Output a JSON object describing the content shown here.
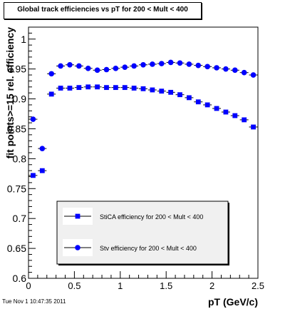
{
  "title": "Global track efficiencies vs pT for 200 < Mult < 400",
  "footer_timestamp": "Tue Nov  1 10:47:35 2011",
  "chart_data": {
    "type": "scatter",
    "title": "Global track efficiencies vs pT for 200 < Mult < 400",
    "xlabel": "pT (GeV/c)",
    "ylabel": "fit points>=15 rel. efficiency",
    "xlim": [
      0,
      2.5
    ],
    "ylim": [
      0.6,
      1.02
    ],
    "x_ticks": [
      "0",
      "0.5",
      "1",
      "1.5",
      "2",
      "2.5"
    ],
    "y_ticks": [
      "0.6",
      "0.65",
      "0.7",
      "0.75",
      "0.8",
      "0.85",
      "0.9",
      "0.95",
      "1"
    ],
    "grid": false,
    "legend_position": "bottom-center",
    "x": [
      0.05,
      0.15,
      0.25,
      0.35,
      0.45,
      0.55,
      0.65,
      0.75,
      0.85,
      0.95,
      1.05,
      1.15,
      1.25,
      1.35,
      1.45,
      1.55,
      1.65,
      1.75,
      1.85,
      1.95,
      2.05,
      2.15,
      2.25,
      2.35,
      2.45
    ],
    "series": [
      {
        "name": "StiCA efficiency  for 200 < Mult < 400",
        "marker": "square",
        "color": "#0000ff",
        "values": [
          0.772,
          0.78,
          0.908,
          0.918,
          0.918,
          0.919,
          0.92,
          0.92,
          0.919,
          0.919,
          0.919,
          0.918,
          0.917,
          0.915,
          0.913,
          0.911,
          0.907,
          0.902,
          0.895,
          0.89,
          0.884,
          0.878,
          0.872,
          0.865,
          0.853
        ]
      },
      {
        "name": "Stv efficiency  for 200 < Mult < 400",
        "marker": "circle",
        "color": "#0000ff",
        "values": [
          0.866,
          0.817,
          0.942,
          0.955,
          0.957,
          0.955,
          0.951,
          0.948,
          0.949,
          0.951,
          0.953,
          0.955,
          0.957,
          0.958,
          0.959,
          0.961,
          0.96,
          0.958,
          0.956,
          0.954,
          0.952,
          0.95,
          0.948,
          0.944,
          0.94
        ]
      }
    ]
  }
}
